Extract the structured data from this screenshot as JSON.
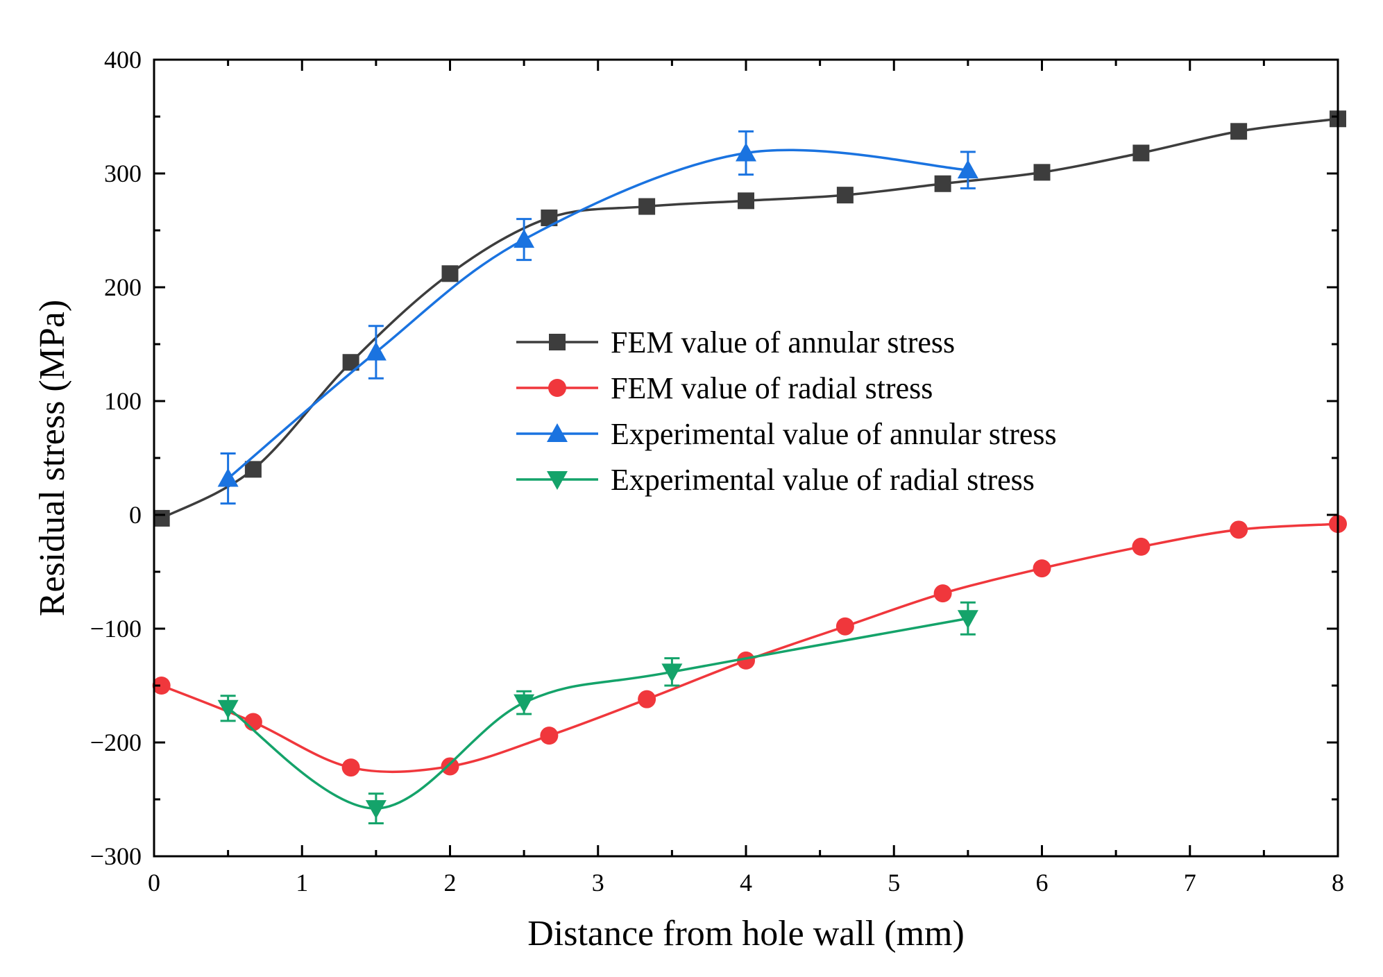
{
  "chart_data": {
    "type": "line",
    "title": "",
    "xlabel": "Distance from hole wall (mm)",
    "ylabel": "Residual stress (MPa)",
    "xlim": [
      0,
      8
    ],
    "ylim": [
      -300,
      400
    ],
    "xticks": [
      0,
      1,
      2,
      3,
      4,
      5,
      6,
      7,
      8
    ],
    "yticks": [
      -300,
      -200,
      -100,
      0,
      100,
      200,
      300,
      400
    ],
    "xtick_labels": [
      "0",
      "1",
      "2",
      "3",
      "4",
      "5",
      "6",
      "7",
      "8"
    ],
    "ytick_labels": [
      "−300",
      "−200",
      "−100",
      "0",
      "100",
      "200",
      "300",
      "400"
    ],
    "grid": false,
    "legend_position": "center",
    "series": [
      {
        "name": "FEM value of annular stress",
        "color": "#3d3d3d",
        "marker": "square",
        "x": [
          0.05,
          0.67,
          1.33,
          2.0,
          2.67,
          3.33,
          4.0,
          4.67,
          5.33,
          6.0,
          6.67,
          7.33,
          8.0
        ],
        "y": [
          -3,
          40,
          134,
          212,
          261,
          271,
          276,
          281,
          291,
          301,
          318,
          337,
          348
        ]
      },
      {
        "name": "FEM value of radial stress",
        "color": "#f0373c",
        "marker": "circle",
        "x": [
          0.05,
          0.67,
          1.33,
          2.0,
          2.67,
          3.33,
          4.0,
          4.67,
          5.33,
          6.0,
          6.67,
          7.33,
          8.0
        ],
        "y": [
          -150,
          -182,
          -222,
          -221,
          -194,
          -162,
          -128,
          -98,
          -69,
          -47,
          -28,
          -13,
          -8
        ]
      },
      {
        "name": "Experimental value of annular stress",
        "color": "#1a73e0",
        "marker": "triangle-up",
        "x": [
          0.5,
          1.5,
          2.5,
          4.0,
          5.5
        ],
        "y": [
          32,
          143,
          242,
          318,
          303
        ],
        "error": [
          22,
          23,
          18,
          19,
          16
        ]
      },
      {
        "name": "Experimental value of radial stress",
        "color": "#14a36a",
        "marker": "triangle-down",
        "x": [
          0.5,
          1.5,
          2.5,
          3.5,
          5.5
        ],
        "y": [
          -170,
          -258,
          -165,
          -138,
          -91
        ],
        "error": [
          11,
          13,
          10,
          12,
          14
        ]
      }
    ]
  }
}
